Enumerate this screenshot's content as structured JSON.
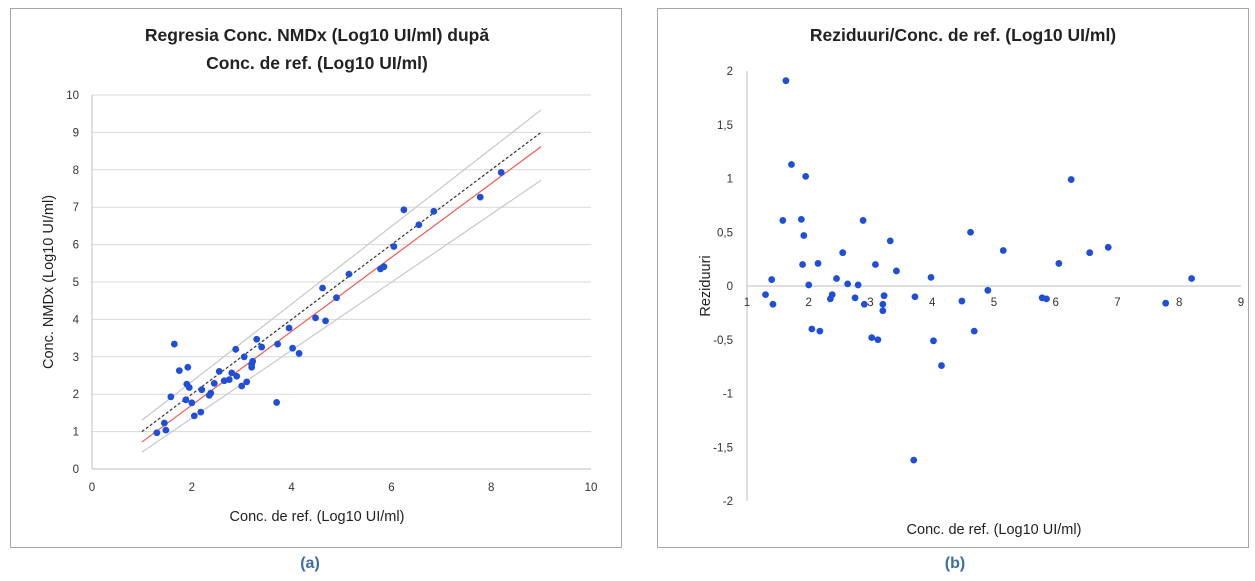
{
  "captions": {
    "a": "(a)",
    "b": "(b)"
  },
  "colors": {
    "points": "#1f4fd8",
    "regression": "#f25a4f",
    "identity": "#333333",
    "band": "#c8c8c8",
    "grid": "#d9d9d9",
    "axis": "#bfbfbf"
  },
  "chart_data": [
    {
      "type": "scatter",
      "title": [
        "Regresia Conc. NMDx (Log10 UI/ml) după",
        "Conc. de ref. (Log10 UI/ml)"
      ],
      "xlabel": "Conc. de ref. (Log10 UI/ml)",
      "ylabel": "Conc. NMDx (Log10 UI/ml)",
      "xlim": [
        0,
        10
      ],
      "ylim": [
        0,
        10
      ],
      "x_ticks": [
        "0",
        "2",
        "4",
        "6",
        "8",
        "10"
      ],
      "y_ticks": [
        "0",
        "1",
        "2",
        "3",
        "4",
        "5",
        "6",
        "7",
        "8",
        "9",
        "10"
      ],
      "grid": "horizontal",
      "lines": {
        "identity": {
          "style": "dashed",
          "points": [
            [
              1.0,
              1.0
            ],
            [
              9.0,
              9.0
            ]
          ]
        },
        "regression": {
          "style": "solid",
          "points": [
            [
              1.0,
              0.72
            ],
            [
              9.0,
              8.62
            ]
          ]
        },
        "upper_band": {
          "style": "solid",
          "points": [
            [
              1.0,
              1.3
            ],
            [
              9.0,
              9.6
            ]
          ]
        },
        "lower_band": {
          "style": "solid",
          "points": [
            [
              1.0,
              0.45
            ],
            [
              9.0,
              7.72
            ]
          ]
        }
      },
      "points": [
        [
          1.3,
          0.97
        ],
        [
          1.45,
          1.23
        ],
        [
          1.48,
          1.04
        ],
        [
          1.58,
          1.93
        ],
        [
          1.65,
          3.34
        ],
        [
          1.75,
          2.63
        ],
        [
          1.88,
          1.85
        ],
        [
          1.9,
          2.27
        ],
        [
          1.92,
          2.72
        ],
        [
          1.95,
          2.18
        ],
        [
          2.0,
          1.77
        ],
        [
          2.05,
          1.42
        ],
        [
          2.18,
          1.52
        ],
        [
          2.2,
          2.12
        ],
        [
          2.35,
          1.97
        ],
        [
          2.38,
          2.03
        ],
        [
          2.45,
          2.29
        ],
        [
          2.55,
          2.61
        ],
        [
          2.65,
          2.36
        ],
        [
          2.75,
          2.39
        ],
        [
          2.8,
          2.57
        ],
        [
          2.88,
          3.2
        ],
        [
          2.9,
          2.48
        ],
        [
          3.0,
          2.22
        ],
        [
          3.05,
          3.0
        ],
        [
          3.1,
          2.33
        ],
        [
          3.2,
          2.72
        ],
        [
          3.2,
          2.8
        ],
        [
          3.22,
          2.88
        ],
        [
          3.3,
          3.47
        ],
        [
          3.4,
          3.26
        ],
        [
          3.7,
          1.78
        ],
        [
          3.72,
          3.34
        ],
        [
          3.95,
          3.77
        ],
        [
          4.02,
          3.23
        ],
        [
          4.15,
          3.09
        ],
        [
          4.48,
          4.04
        ],
        [
          4.62,
          4.84
        ],
        [
          4.68,
          3.96
        ],
        [
          4.9,
          4.58
        ],
        [
          5.15,
          5.21
        ],
        [
          5.78,
          5.35
        ],
        [
          5.85,
          5.41
        ],
        [
          6.05,
          5.95
        ],
        [
          6.25,
          6.93
        ],
        [
          6.55,
          6.53
        ],
        [
          6.85,
          6.89
        ],
        [
          7.78,
          7.27
        ],
        [
          8.2,
          7.93
        ]
      ]
    },
    {
      "type": "scatter",
      "title": "Reziduuri/Conc. de ref. (Log10 UI/ml)",
      "xlabel": "Conc. de ref. (Log10 UI/ml)",
      "ylabel": "Reziduuri",
      "xlim": [
        1,
        9
      ],
      "ylim": [
        -2,
        2
      ],
      "x_ticks": [
        "1",
        "2",
        "3",
        "4",
        "5",
        "6",
        "7",
        "8",
        "9"
      ],
      "y_ticks": [
        "2",
        "1,5",
        "1",
        "0,5",
        "0",
        "-0,5",
        "-1",
        "-1,5",
        "-2"
      ],
      "grid": "none",
      "points": [
        [
          1.3,
          -0.08
        ],
        [
          1.4,
          0.06
        ],
        [
          1.42,
          -0.17
        ],
        [
          1.58,
          0.61
        ],
        [
          1.63,
          1.91
        ],
        [
          1.72,
          1.13
        ],
        [
          1.88,
          0.62
        ],
        [
          1.9,
          0.2
        ],
        [
          1.92,
          0.47
        ],
        [
          1.95,
          1.02
        ],
        [
          2.0,
          0.01
        ],
        [
          2.05,
          -0.4
        ],
        [
          2.15,
          0.21
        ],
        [
          2.18,
          -0.42
        ],
        [
          2.35,
          -0.12
        ],
        [
          2.38,
          -0.08
        ],
        [
          2.45,
          0.07
        ],
        [
          2.55,
          0.31
        ],
        [
          2.63,
          0.02
        ],
        [
          2.75,
          -0.11
        ],
        [
          2.8,
          0.01
        ],
        [
          2.88,
          0.61
        ],
        [
          2.9,
          -0.17
        ],
        [
          3.02,
          -0.48
        ],
        [
          3.08,
          0.2
        ],
        [
          3.12,
          -0.5
        ],
        [
          3.2,
          -0.17
        ],
        [
          3.2,
          -0.23
        ],
        [
          3.22,
          -0.09
        ],
        [
          3.32,
          0.42
        ],
        [
          3.42,
          0.14
        ],
        [
          3.7,
          -1.62
        ],
        [
          3.72,
          -0.1
        ],
        [
          3.98,
          0.08
        ],
        [
          4.02,
          -0.51
        ],
        [
          4.15,
          -0.74
        ],
        [
          4.48,
          -0.14
        ],
        [
          4.62,
          0.5
        ],
        [
          4.68,
          -0.42
        ],
        [
          4.9,
          -0.04
        ],
        [
          5.15,
          0.33
        ],
        [
          5.78,
          -0.11
        ],
        [
          5.85,
          -0.12
        ],
        [
          6.05,
          0.21
        ],
        [
          6.25,
          0.99
        ],
        [
          6.55,
          0.31
        ],
        [
          6.85,
          0.36
        ],
        [
          7.78,
          -0.16
        ],
        [
          8.2,
          0.07
        ]
      ]
    }
  ]
}
